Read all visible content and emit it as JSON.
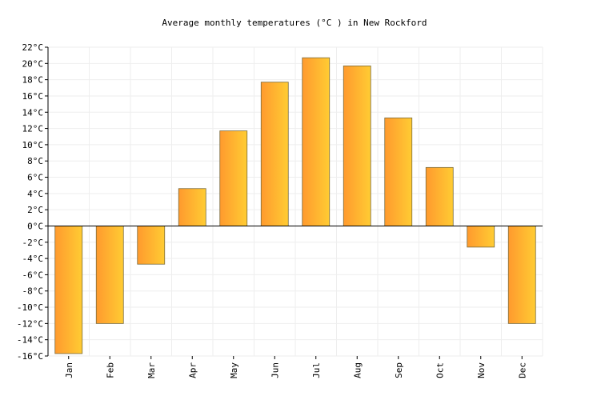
{
  "chart_data": {
    "type": "bar",
    "title": "Average monthly temperatures (°C ) in New Rockford",
    "categories": [
      "Jan",
      "Feb",
      "Mar",
      "Apr",
      "May",
      "Jun",
      "Jul",
      "Aug",
      "Sep",
      "Oct",
      "Nov",
      "Dec"
    ],
    "values": [
      -15.7,
      -12.0,
      -4.7,
      4.6,
      11.7,
      17.7,
      20.7,
      19.7,
      13.3,
      7.2,
      -2.6,
      -12.0
    ],
    "ylim": [
      -16,
      22
    ],
    "ytick_step": 2,
    "ytick_suffix": "°C",
    "grid": true,
    "colors": {
      "bar_gradient_start": "#ff9a2e",
      "bar_gradient_end": "#ffcc33",
      "bar_stroke": "#7a6a3a",
      "grid": "#eeeeee",
      "axis": "#000000"
    }
  }
}
